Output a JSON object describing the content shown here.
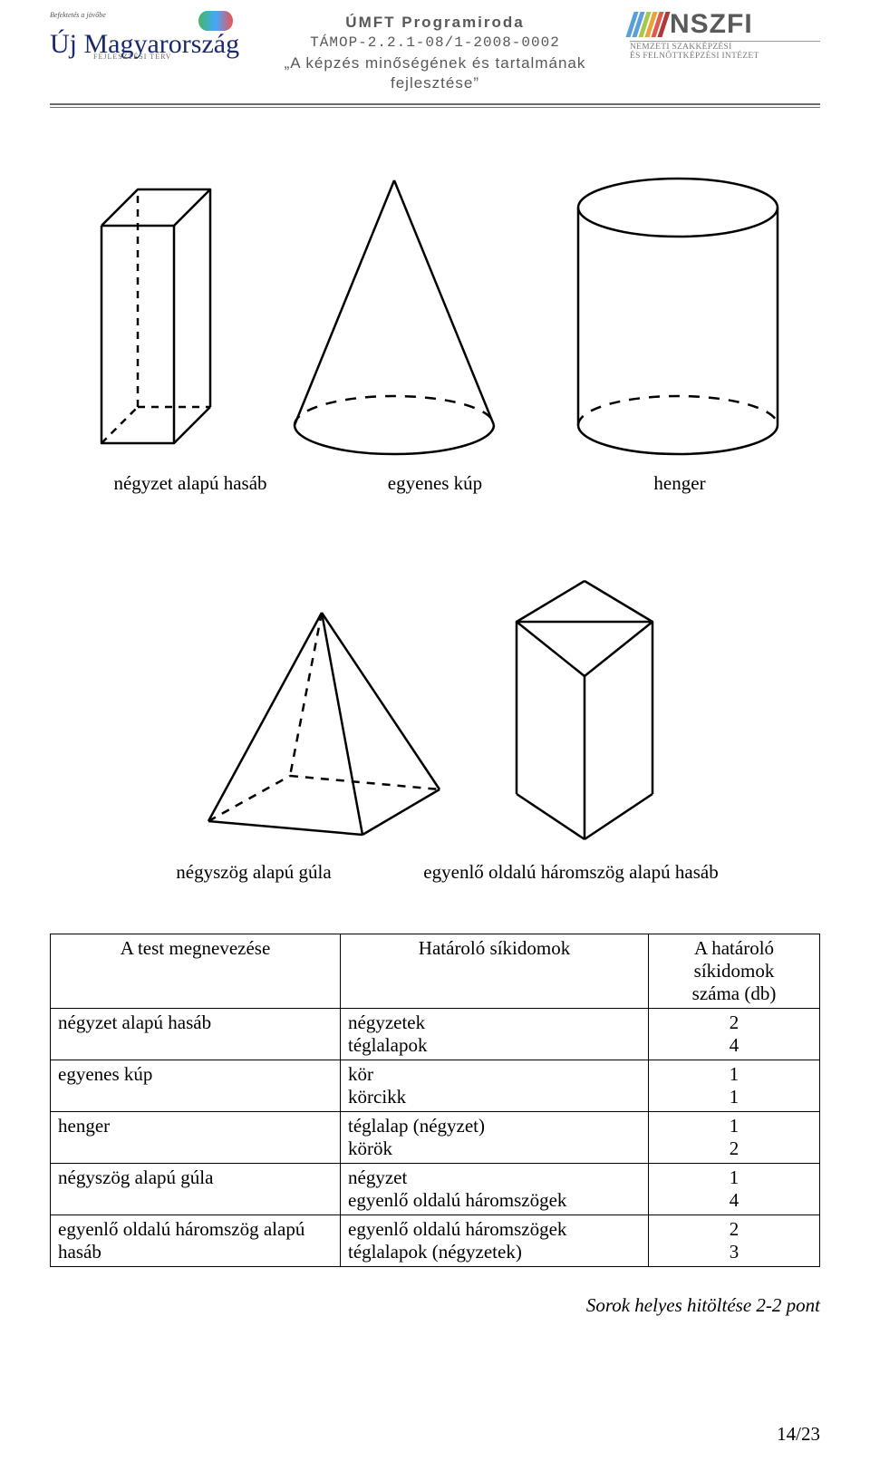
{
  "header": {
    "line1": "ÚMFT Programiroda",
    "line2": "TÁMOP-2.2.1-08/1-2008-0002",
    "line3": "„A képzés minőségének és tartalmának",
    "line4": "fejlesztése”",
    "text_color": "#585858"
  },
  "logo_left": {
    "script": "Új Magyarország",
    "small": "FEJLESZTÉSI TERV",
    "tiny": "Befektetés a jövőbe"
  },
  "logo_right": {
    "main": "NSZFI",
    "sub": "NEMZETI  SZAKKÉPZÉSI\nÉS FELNŐTTKÉPZÉSI INTÉZET",
    "bar_colors": [
      "#5aa0d8",
      "#5aa0d8",
      "#a7c84a",
      "#e8a33c",
      "#e25b4a",
      "#b03a3a"
    ]
  },
  "hr_color": "#6b6b6b",
  "row1_labels": {
    "a": "négyzet alapú hasáb",
    "b": "egyenes kúp",
    "c": "henger"
  },
  "row2_labels": {
    "a": "négyszög alapú gúla",
    "b": "egyenlő oldalú háromszög alapú hasáb"
  },
  "table": {
    "head": {
      "c1": "A test megnevezése",
      "c2": "Határoló síkidomok",
      "c3": "A határoló\nsíkidomok\nszáma (db)"
    },
    "rows": [
      {
        "name": "négyzet alapú hasáb",
        "shapes": [
          "négyzetek",
          "téglalapok"
        ],
        "counts": [
          "2",
          "4"
        ]
      },
      {
        "name": "egyenes kúp",
        "shapes": [
          "kör",
          "körcikk"
        ],
        "counts": [
          "1",
          "1"
        ]
      },
      {
        "name": "henger",
        "shapes": [
          "téglalap (négyzet)",
          "körök"
        ],
        "counts": [
          "1",
          "2"
        ]
      },
      {
        "name": "négyszög alapú gúla",
        "shapes": [
          "négyzet",
          "egyenlő oldalú háromszögek"
        ],
        "counts": [
          "1",
          "4"
        ]
      },
      {
        "name": "egyenlő oldalú háromszög alapú hasáb",
        "shapes": [
          "egyenlő oldalú háromszögek",
          "téglalapok (négyzetek)"
        ],
        "counts": [
          "2",
          "3"
        ]
      }
    ]
  },
  "score_line": "Sorok helyes hitöltése 2-2 pont",
  "page_number": "14/23",
  "shape_stroke": "#000000",
  "shape_stroke_width": 2.5
}
